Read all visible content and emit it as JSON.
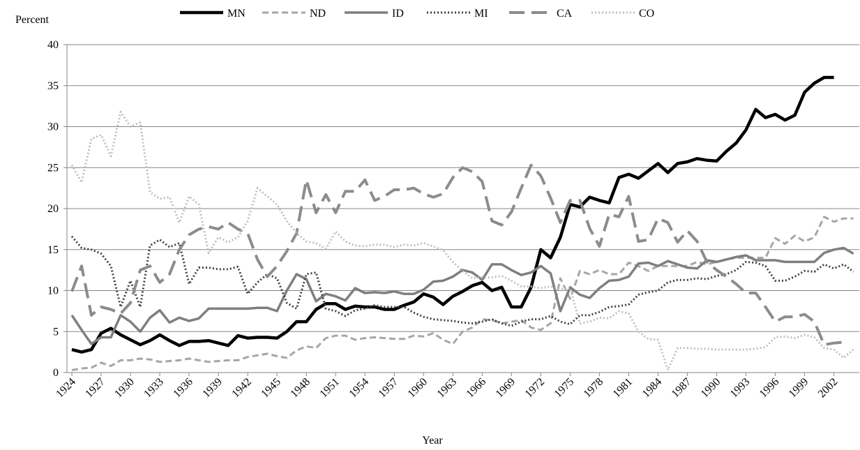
{
  "chart_data": {
    "type": "line",
    "y_label": "Percent",
    "x_label": "Year",
    "x": [
      1924,
      1925,
      1926,
      1927,
      1928,
      1929,
      1930,
      1931,
      1932,
      1933,
      1934,
      1935,
      1936,
      1937,
      1938,
      1939,
      1940,
      1941,
      1942,
      1943,
      1944,
      1945,
      1946,
      1947,
      1948,
      1949,
      1950,
      1951,
      1952,
      1953,
      1954,
      1955,
      1956,
      1957,
      1958,
      1959,
      1960,
      1961,
      1962,
      1963,
      1964,
      1965,
      1966,
      1967,
      1968,
      1969,
      1970,
      1971,
      1972,
      1973,
      1974,
      1975,
      1976,
      1977,
      1978,
      1979,
      1980,
      1981,
      1982,
      1983,
      1984,
      1985,
      1986,
      1987,
      1988,
      1989,
      1990,
      1991,
      1992,
      1993,
      1994,
      1995,
      1996,
      1997,
      1998,
      1999,
      2000,
      2001,
      2002,
      2003,
      2004
    ],
    "xlim": [
      1923.5,
      2004.6
    ],
    "xticks": [
      1924,
      1927,
      1930,
      1933,
      1936,
      1939,
      1942,
      1945,
      1948,
      1951,
      1954,
      1957,
      1960,
      1963,
      1966,
      1969,
      1972,
      1975,
      1978,
      1981,
      1984,
      1987,
      1990,
      1993,
      1996,
      1999,
      2002
    ],
    "ylim": [
      0,
      40
    ],
    "yticks": [
      0,
      5,
      10,
      15,
      20,
      25,
      30,
      35,
      40
    ],
    "grid": true,
    "legend": "top",
    "series": [
      {
        "name": "MN",
        "color": "#000000",
        "style": "solid-thick",
        "values": [
          2.8,
          2.5,
          2.8,
          4.8,
          5.4,
          4.6,
          4.0,
          3.4,
          3.9,
          4.6,
          3.9,
          3.3,
          3.8,
          3.8,
          3.9,
          3.6,
          3.3,
          4.5,
          4.2,
          4.3,
          4.3,
          4.2,
          5.0,
          6.2,
          6.2,
          7.7,
          8.4,
          8.4,
          7.7,
          8.1,
          8.0,
          8.0,
          7.7,
          7.7,
          8.2,
          8.6,
          9.6,
          9.2,
          8.3,
          9.3,
          9.9,
          10.6,
          11.0,
          10.0,
          10.4,
          8.0,
          8.0,
          10.4,
          15.0,
          14.0,
          16.5,
          20.5,
          20.2,
          21.4,
          21.0,
          20.7,
          23.8,
          24.2,
          23.7,
          24.6,
          25.5,
          24.4,
          25.5,
          25.7,
          26.1,
          25.9,
          25.8,
          27.0,
          28.0,
          29.6,
          32.1,
          31.1,
          31.5,
          30.8,
          31.4,
          34.2,
          35.3,
          36.0,
          36.0,
          null,
          null
        ]
      },
      {
        "name": "ND",
        "color": "#a6a6a6",
        "style": "dashed",
        "values": [
          0.3,
          0.5,
          0.6,
          1.2,
          0.8,
          1.5,
          1.5,
          1.7,
          1.6,
          1.3,
          1.4,
          1.5,
          1.7,
          1.5,
          1.3,
          1.4,
          1.5,
          1.5,
          1.9,
          2.1,
          2.3,
          2.0,
          1.8,
          2.7,
          3.2,
          3.0,
          4.2,
          4.5,
          4.5,
          4.0,
          4.2,
          4.3,
          4.2,
          4.1,
          4.1,
          4.5,
          4.4,
          4.8,
          4.0,
          3.5,
          5.0,
          5.5,
          6.5,
          6.4,
          6.0,
          6.2,
          6.4,
          5.5,
          5.2,
          6.0,
          11.5,
          9.0,
          12.4,
          12.0,
          12.5,
          12.0,
          12.0,
          13.4,
          13.0,
          12.4,
          13.0,
          13.0,
          13.0,
          13.0,
          13.5,
          13.2,
          13.5,
          13.8,
          14.0,
          14.0,
          14.0,
          14.0,
          16.4,
          15.7,
          16.7,
          16.0,
          16.5,
          19.0,
          18.4,
          18.8,
          18.8
        ]
      },
      {
        "name": "ID",
        "color": "#7f7f7f",
        "style": "solid",
        "values": [
          7.0,
          5.2,
          3.5,
          4.3,
          4.3,
          7.0,
          6.2,
          5.0,
          6.7,
          7.6,
          6.1,
          6.7,
          6.3,
          6.6,
          7.8,
          7.8,
          7.8,
          7.8,
          7.8,
          7.9,
          7.9,
          7.5,
          10.0,
          12.0,
          11.4,
          8.7,
          9.6,
          9.3,
          8.8,
          10.3,
          9.7,
          9.8,
          9.7,
          9.9,
          9.6,
          9.6,
          10.1,
          11.1,
          11.2,
          11.7,
          12.5,
          12.2,
          11.3,
          13.2,
          13.2,
          12.5,
          11.9,
          12.2,
          13.0,
          12.1,
          7.5,
          10.4,
          9.5,
          9.1,
          10.3,
          11.2,
          11.3,
          11.7,
          13.3,
          13.4,
          13.0,
          13.6,
          13.2,
          12.8,
          12.7,
          13.7,
          13.5,
          13.8,
          14.1,
          14.3,
          13.7,
          13.7,
          13.7,
          13.5,
          13.5,
          13.5,
          13.5,
          14.6,
          15.0,
          15.2,
          14.5
        ]
      },
      {
        "name": "MI",
        "color": "#404040",
        "style": "dotted",
        "values": [
          16.6,
          15.2,
          15.0,
          14.5,
          13.0,
          8.0,
          11.2,
          8.0,
          15.5,
          16.2,
          15.3,
          15.8,
          10.8,
          12.8,
          12.8,
          12.6,
          12.6,
          12.9,
          9.6,
          11.0,
          12.0,
          11.5,
          8.5,
          7.8,
          12.0,
          12.2,
          7.8,
          7.5,
          6.9,
          7.6,
          7.8,
          8.2,
          8.0,
          8.0,
          8.0,
          7.3,
          6.8,
          6.5,
          6.4,
          6.3,
          6.1,
          6.0,
          6.2,
          6.5,
          6.0,
          5.7,
          6.2,
          6.5,
          6.5,
          6.9,
          6.2,
          5.9,
          7.0,
          7.0,
          7.4,
          8.0,
          8.1,
          8.3,
          9.5,
          9.8,
          10.0,
          11.0,
          11.3,
          11.3,
          11.5,
          11.4,
          11.8,
          12.0,
          12.5,
          13.5,
          13.4,
          13.0,
          11.2,
          11.2,
          11.7,
          12.4,
          12.3,
          13.2,
          12.7,
          13.2,
          12.3
        ]
      },
      {
        "name": "CA",
        "color": "#8c8c8c",
        "style": "long-dash",
        "values": [
          9.9,
          13.0,
          7.0,
          8.0,
          7.7,
          7.2,
          8.5,
          12.5,
          13.0,
          11.0,
          12.0,
          15.0,
          16.8,
          17.5,
          17.8,
          17.5,
          18.3,
          17.5,
          17.0,
          13.8,
          11.7,
          13.0,
          14.8,
          17.0,
          23.5,
          19.5,
          21.7,
          19.5,
          22.1,
          22.1,
          23.5,
          21.0,
          21.5,
          22.3,
          22.3,
          22.5,
          21.8,
          21.4,
          21.8,
          23.8,
          25.0,
          24.5,
          23.3,
          18.5,
          18.0,
          19.6,
          22.5,
          25.3,
          24.0,
          21.3,
          18.3,
          21.0,
          21.0,
          17.6,
          15.4,
          19.3,
          19.0,
          21.5,
          16.0,
          16.2,
          18.8,
          18.3,
          15.9,
          17.3,
          16.0,
          13.5,
          12.5,
          11.7,
          10.8,
          9.7,
          9.7,
          8.0,
          6.2,
          6.8,
          6.8,
          7.1,
          6.2,
          3.4,
          3.6,
          3.7,
          null
        ]
      },
      {
        "name": "CO",
        "color": "#bfbfbf",
        "style": "dotted",
        "values": [
          25.3,
          23.2,
          28.5,
          29.0,
          26.4,
          31.8,
          30.0,
          30.5,
          22.0,
          21.2,
          21.4,
          18.3,
          21.5,
          20.5,
          14.6,
          16.5,
          15.9,
          16.5,
          18.5,
          22.5,
          21.5,
          20.5,
          18.5,
          17.0,
          16.0,
          15.8,
          15.1,
          17.2,
          16.0,
          15.5,
          15.4,
          15.6,
          15.6,
          15.3,
          15.6,
          15.5,
          15.8,
          15.4,
          14.9,
          13.5,
          12.4,
          11.5,
          11.6,
          11.6,
          11.8,
          11.2,
          10.5,
          10.5,
          10.3,
          10.5,
          10.2,
          10.3,
          6.0,
          6.2,
          6.7,
          6.6,
          7.5,
          7.2,
          5.0,
          4.1,
          4.0,
          0.3,
          3.0,
          3.0,
          2.9,
          2.9,
          2.8,
          2.8,
          2.8,
          2.8,
          2.9,
          3.1,
          4.3,
          4.4,
          4.2,
          4.6,
          4.3,
          3.0,
          2.8,
          1.8,
          2.8
        ]
      }
    ]
  }
}
